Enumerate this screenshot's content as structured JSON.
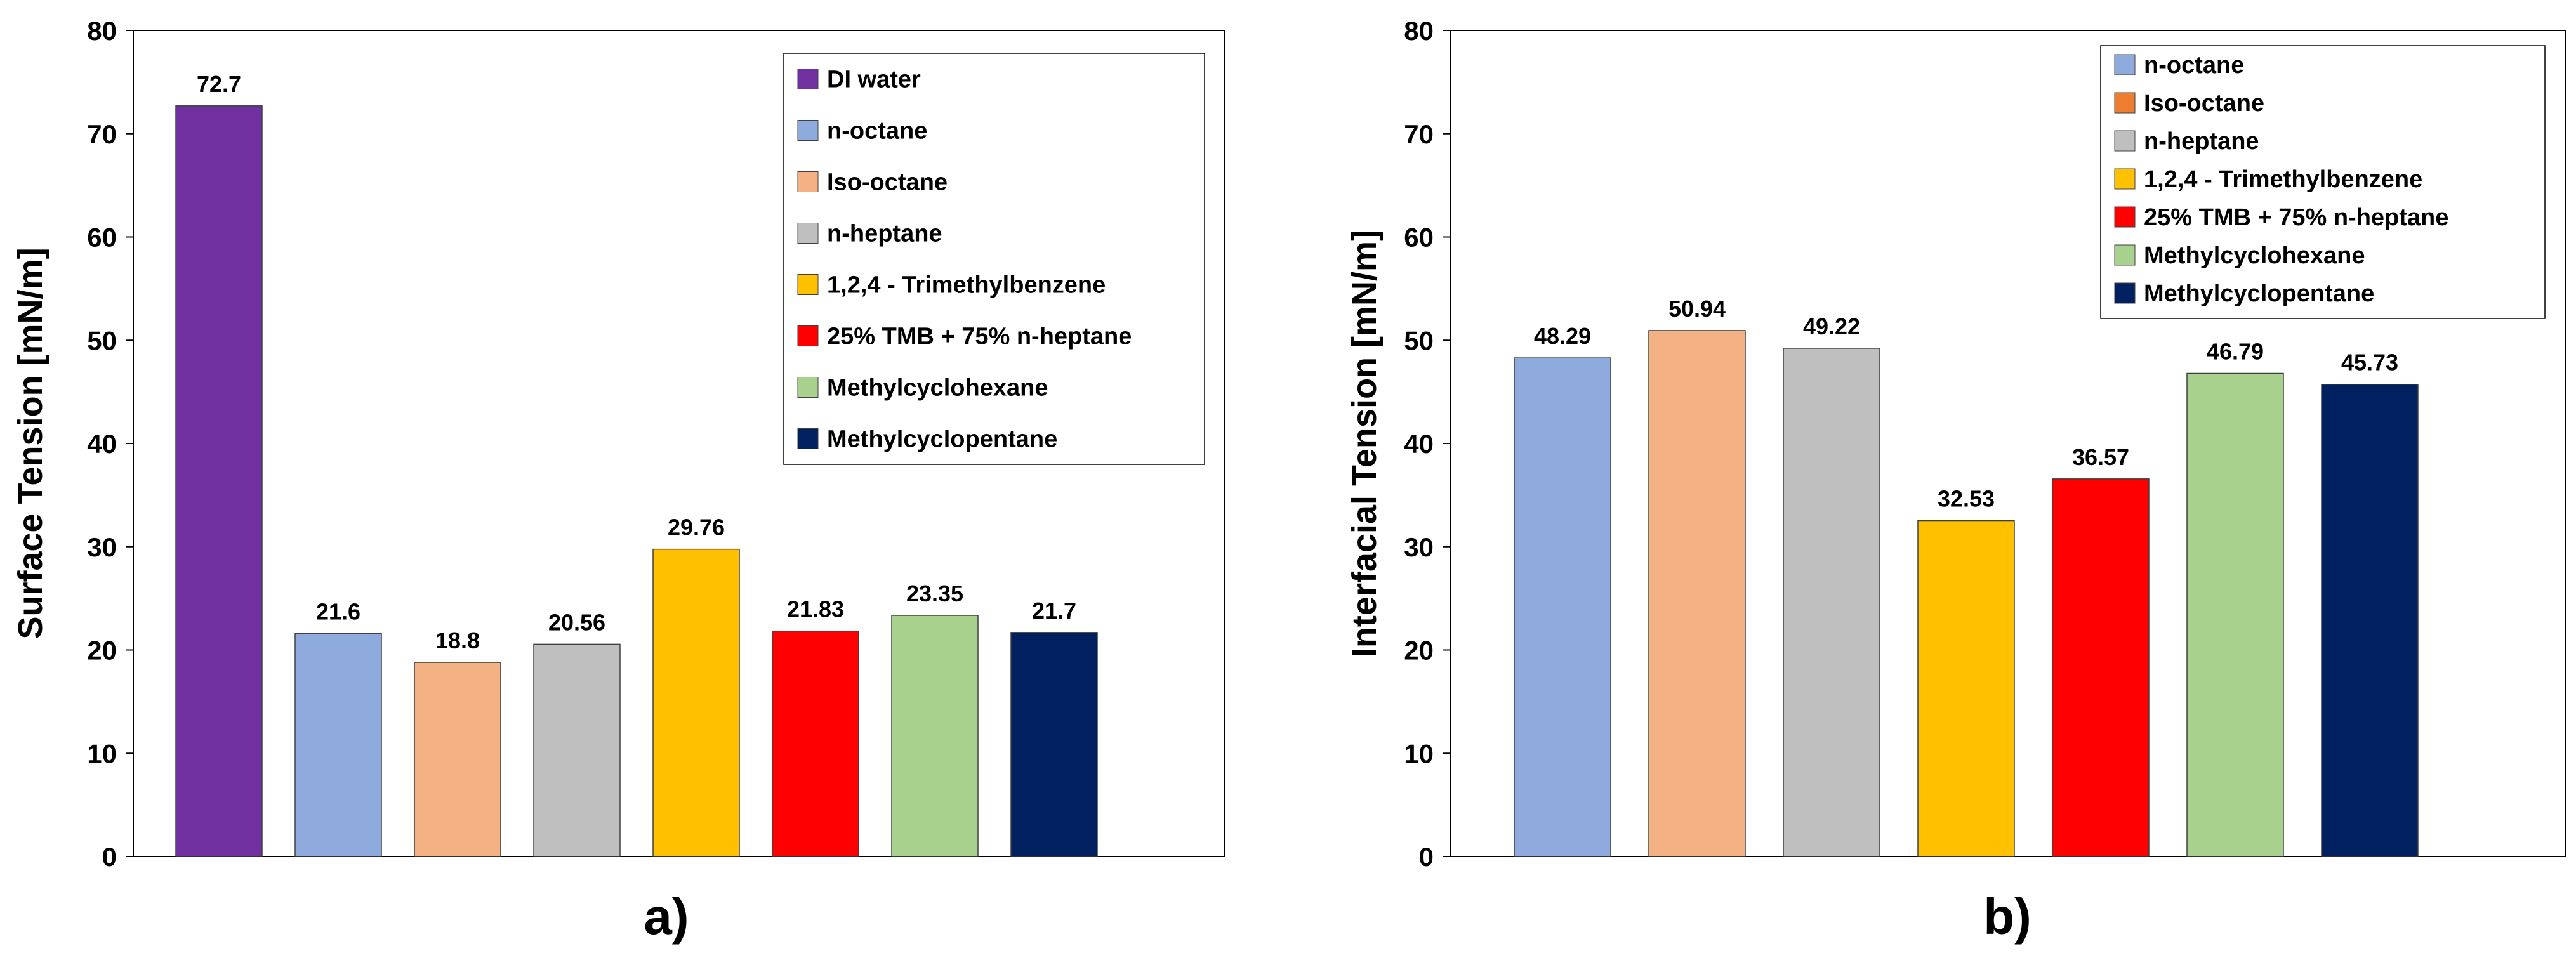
{
  "chart_data": [
    {
      "type": "bar",
      "panel_label": "a)",
      "ylabel": "Surface Tension [mN/m]",
      "xlabel": "",
      "ylim": [
        0,
        80
      ],
      "yticks": [
        "0",
        "10",
        "20",
        "30",
        "40",
        "50",
        "60",
        "70",
        "80"
      ],
      "categories": [
        "DI water",
        "n-octane",
        "Iso-octane",
        "n-heptane",
        "1,2,4 - Trimethylbenzene",
        "25% TMB + 75% n-heptane",
        "Methylcyclohexane",
        "Methylcyclopentane"
      ],
      "values": [
        72.7,
        21.6,
        18.8,
        20.56,
        29.76,
        21.83,
        23.35,
        21.7
      ],
      "value_labels": [
        "72.7",
        "21.6",
        "18.8",
        "20.56",
        "29.76",
        "21.83",
        "23.35",
        "21.7"
      ],
      "colors": [
        "#7030a0",
        "#8faadc",
        "#f4b183",
        "#bfbfbf",
        "#ffc000",
        "#ff0000",
        "#a9d18e",
        "#002060"
      ],
      "legend": [
        "DI water",
        "n-octane",
        "Iso-octane",
        "n-heptane",
        "1,2,4 - Trimethylbenzene",
        "25% TMB + 75% n-heptane",
        "Methylcyclohexane",
        "Methylcyclopentane"
      ],
      "legend_position": "top-right",
      "grid": false
    },
    {
      "type": "bar",
      "panel_label": "b)",
      "ylabel": "Interfacial Tension [mN/m]",
      "xlabel": "",
      "ylim": [
        0,
        80
      ],
      "yticks": [
        "0",
        "10",
        "20",
        "30",
        "40",
        "50",
        "60",
        "70",
        "80"
      ],
      "categories": [
        "n-octane",
        "Iso-octane",
        "n-heptane",
        "1,2,4 - Trimethylbenzene",
        "25% TMB + 75% n-heptane",
        "Methylcyclohexane",
        "Methylcyclopentane"
      ],
      "values": [
        48.29,
        50.94,
        49.22,
        32.53,
        36.57,
        46.79,
        45.73
      ],
      "value_labels": [
        "48.29",
        "50.94",
        "49.22",
        "32.53",
        "36.57",
        "46.79",
        "45.73"
      ],
      "colors": [
        "#8faadc",
        "#f4b183",
        "#bfbfbf",
        "#ffc000",
        "#ff0000",
        "#a9d18e",
        "#002060"
      ],
      "legend": [
        "n-octane",
        "Iso-octane",
        "n-heptane",
        "1,2,4 - Trimethylbenzene",
        "25% TMB + 75% n-heptane",
        "Methylcyclohexane",
        "Methylcyclopentane"
      ],
      "legend_position": "top-right",
      "legend_swatch_colors": [
        "#8faadc",
        "#ed7d31",
        "#bfbfbf",
        "#ffc000",
        "#ff0000",
        "#a9d18e",
        "#002060"
      ],
      "grid": false
    }
  ]
}
